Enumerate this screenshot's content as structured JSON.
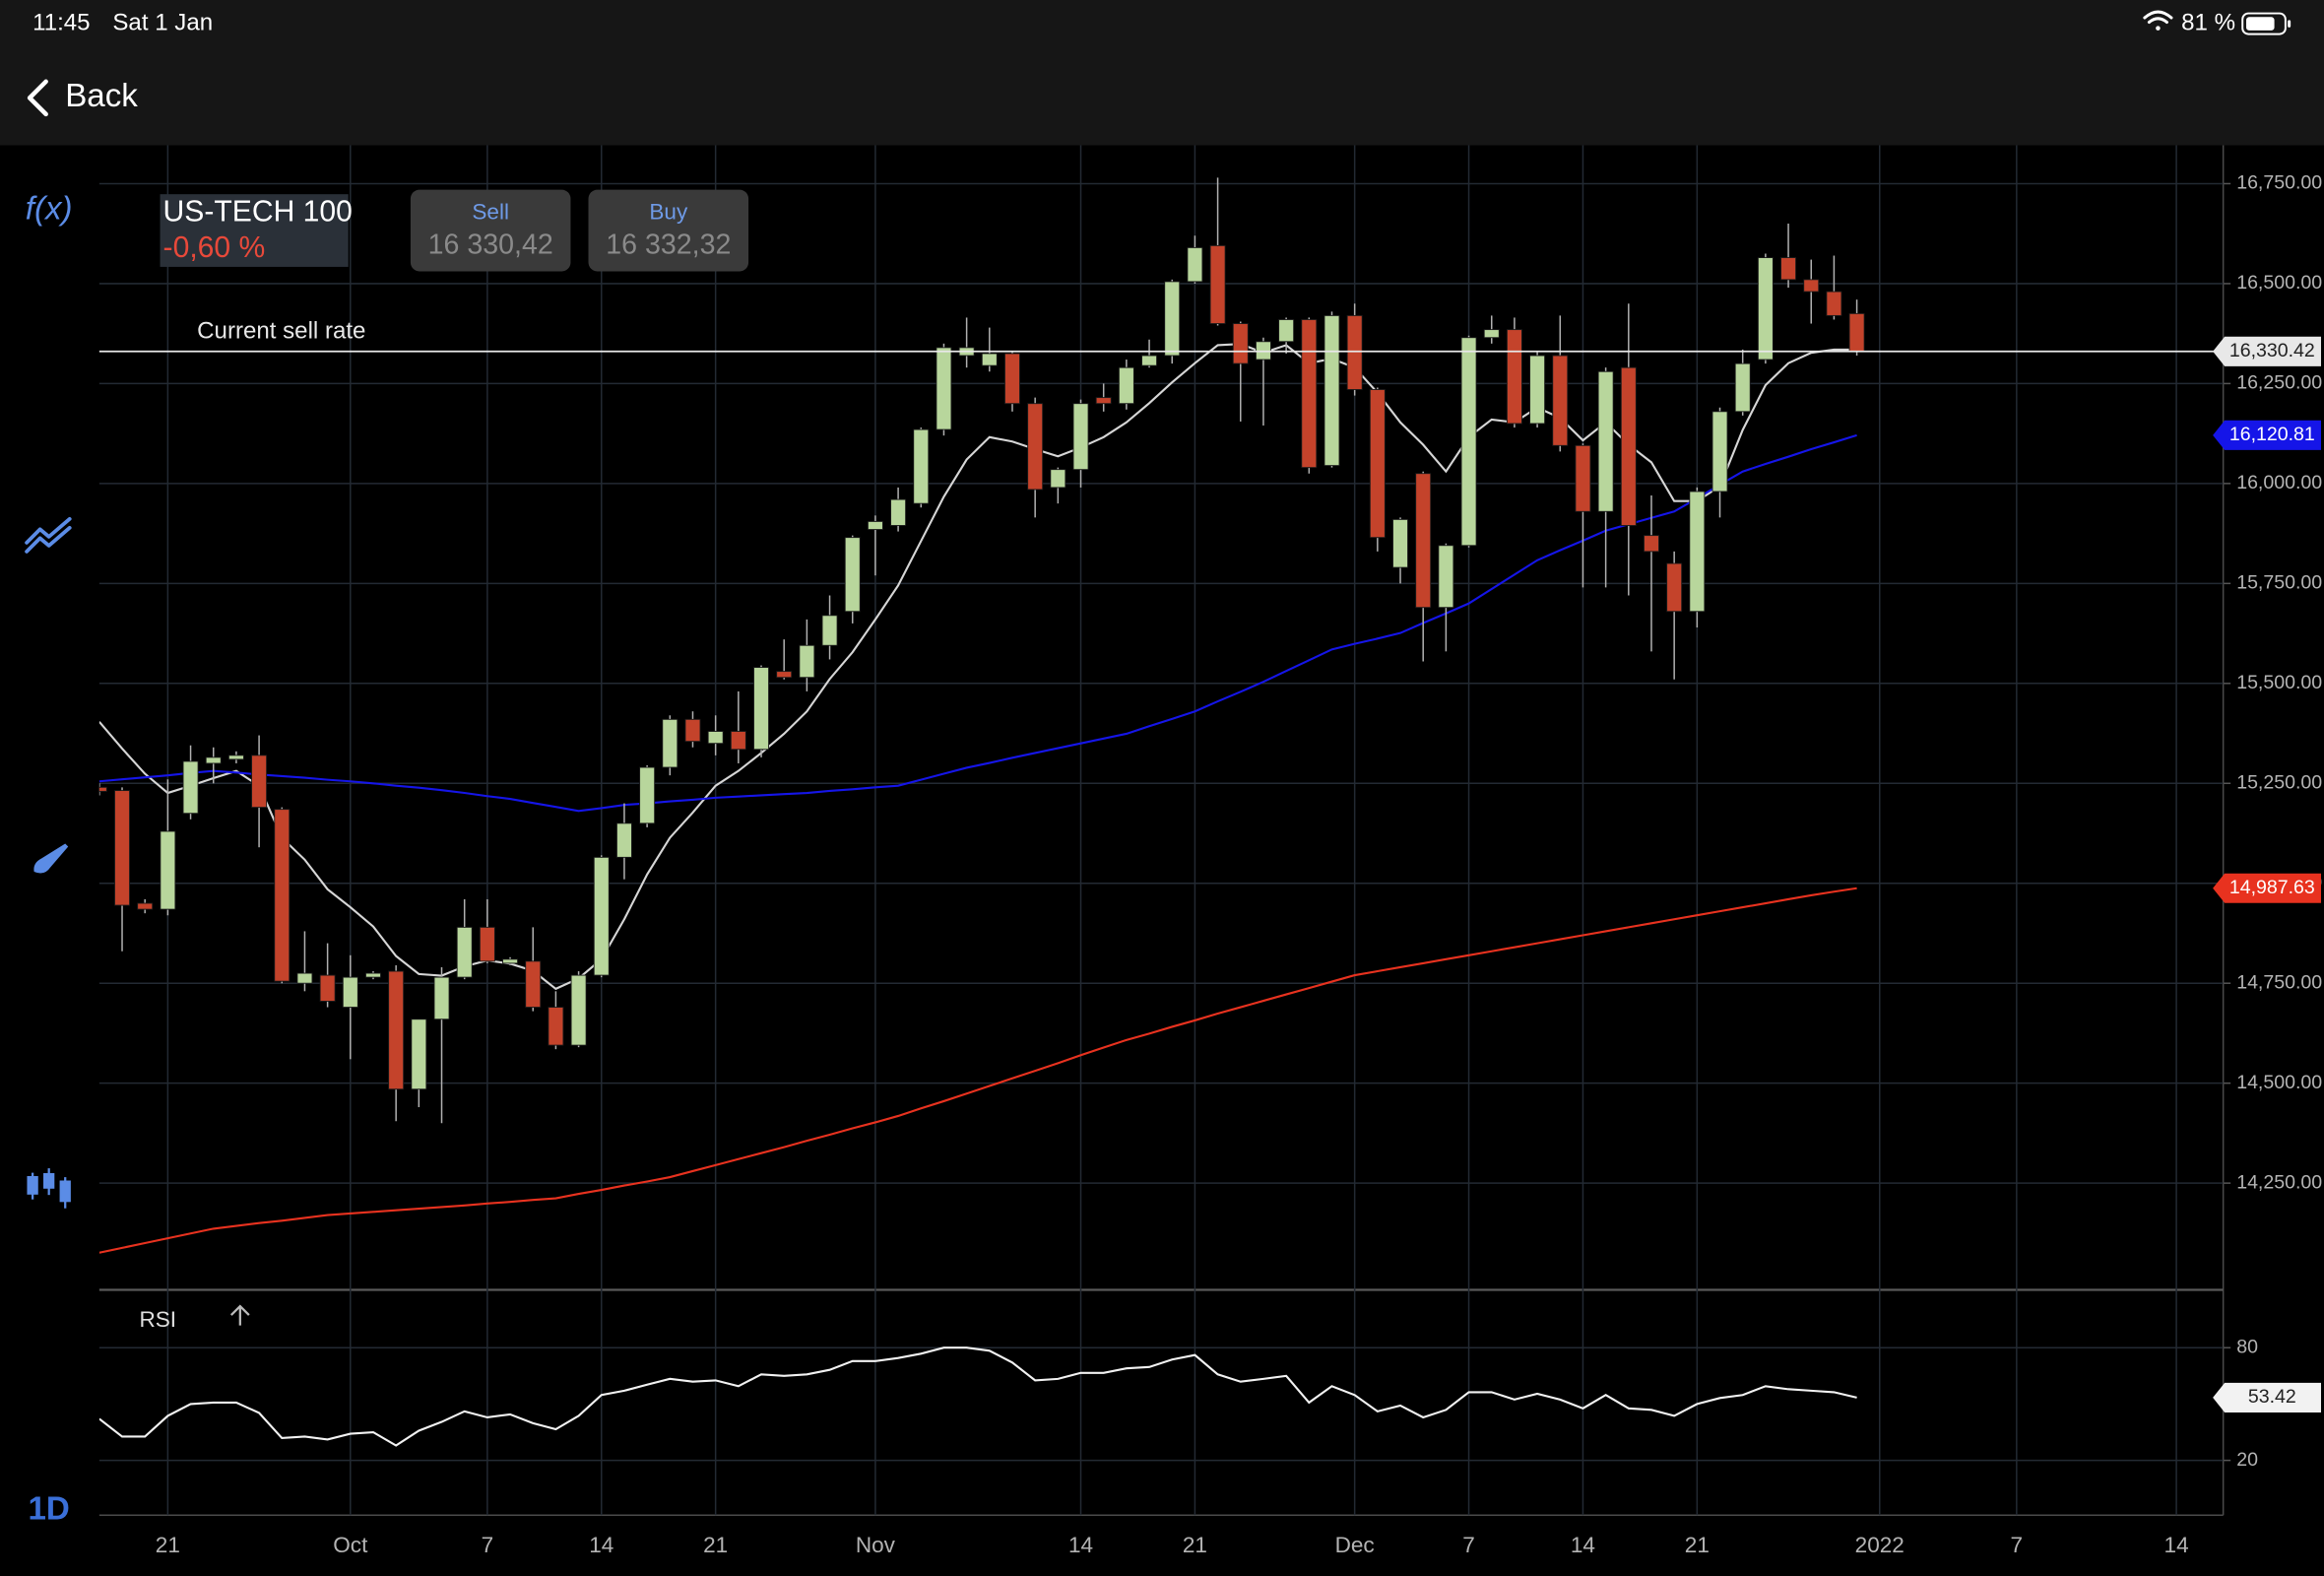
{
  "status_bar": {
    "time": "11:45",
    "date": "Sat 1 Jan",
    "battery": "81 %"
  },
  "nav": {
    "back": "Back"
  },
  "toolbar": {
    "function": "f(x)",
    "timeframe": "1D"
  },
  "instrument": {
    "name": "US-TECH 100",
    "change": "-0,60 %",
    "sell_label": "Sell",
    "sell_price": "16 330,42",
    "buy_label": "Buy",
    "buy_price": "16 332,32"
  },
  "chart_data": [
    {
      "type": "candlestick",
      "categories": [
        null,
        null,
        null,
        "21",
        null,
        null,
        null,
        null,
        null,
        null,
        null,
        "Oct",
        null,
        null,
        null,
        null,
        null,
        "7",
        null,
        null,
        null,
        null,
        "14",
        null,
        null,
        null,
        null,
        "21",
        null,
        null,
        null,
        null,
        null,
        null,
        "Nov",
        null,
        null,
        null,
        null,
        null,
        null,
        null,
        null,
        "14",
        null,
        null,
        null,
        null,
        "21",
        null,
        null,
        null,
        null,
        null,
        null,
        "Dec",
        null,
        null,
        null,
        null,
        "7",
        null,
        null,
        null,
        null,
        "14",
        null,
        null,
        null,
        null,
        "21",
        null,
        null,
        null,
        null,
        null,
        null,
        null,
        "2022",
        null,
        null,
        null,
        null,
        null,
        "7",
        null,
        null,
        null,
        null,
        null,
        null,
        "14"
      ],
      "open": [
        15240,
        15232,
        14950,
        14935,
        15175,
        15300,
        15310,
        15320,
        15185,
        14750,
        14770,
        14690,
        14765,
        14780,
        14485,
        14660,
        14765,
        14890,
        14800,
        14805,
        14690,
        14595,
        14770,
        15065,
        15150,
        15290,
        15410,
        15350,
        15380,
        15335,
        15530,
        15515,
        15595,
        15680,
        15885,
        15895,
        15950,
        16135,
        16320,
        16295,
        16325,
        16200,
        15990,
        16035,
        16215,
        16200,
        16295,
        16320,
        16505,
        16595,
        16400,
        16310,
        16355,
        16410,
        16045,
        16420,
        16235,
        15790,
        16025,
        15690,
        15845,
        16365,
        16385,
        16150,
        16320,
        16095,
        15930,
        16290,
        15870,
        15800,
        15680,
        15980,
        16180,
        16310,
        16565,
        16510,
        16480,
        16425,
        null,
        null,
        null,
        null,
        null,
        null,
        null,
        null,
        null,
        null,
        null,
        null,
        null,
        null
      ],
      "high": [
        15250,
        15240,
        14960,
        15260,
        15345,
        15340,
        15330,
        15370,
        15190,
        14880,
        14850,
        14820,
        14780,
        14795,
        14660,
        14790,
        14960,
        14960,
        14815,
        14890,
        14730,
        14780,
        15070,
        15200,
        15295,
        15420,
        15430,
        15420,
        15480,
        15545,
        15610,
        15660,
        15720,
        15870,
        15920,
        15990,
        16140,
        16350,
        16415,
        16390,
        16330,
        16215,
        16040,
        16210,
        16250,
        16310,
        16360,
        16510,
        16620,
        16765,
        16405,
        16365,
        16415,
        16415,
        16430,
        16450,
        16240,
        15915,
        16030,
        15850,
        16370,
        16420,
        16415,
        16330,
        16420,
        16100,
        16290,
        16450,
        15970,
        15830,
        15990,
        16190,
        16335,
        16575,
        16650,
        16560,
        16570,
        16460,
        null,
        null,
        null,
        null,
        null,
        null,
        null,
        null,
        null,
        null,
        null,
        null,
        null,
        null
      ],
      "low": [
        15220,
        14830,
        14925,
        14920,
        15160,
        15250,
        15300,
        15090,
        14750,
        14730,
        14690,
        14560,
        14760,
        14405,
        14440,
        14400,
        14760,
        14800,
        14795,
        14680,
        14585,
        14590,
        14765,
        15010,
        15140,
        15270,
        15340,
        15320,
        15300,
        15315,
        15510,
        15480,
        15560,
        15650,
        15770,
        15880,
        15940,
        16120,
        16290,
        16280,
        16180,
        15915,
        15950,
        15990,
        16180,
        16185,
        16290,
        16300,
        16500,
        16395,
        16155,
        16145,
        16325,
        16025,
        16040,
        16220,
        15830,
        15750,
        15555,
        15580,
        15840,
        16350,
        16140,
        16140,
        16080,
        15740,
        15740,
        15720,
        15580,
        15510,
        15640,
        15915,
        16170,
        16300,
        16490,
        16400,
        16410,
        16320,
        null,
        null,
        null,
        null,
        null,
        null,
        null,
        null,
        null,
        null,
        null,
        null,
        null,
        null
      ],
      "close": [
        15230,
        14945,
        14935,
        15130,
        15305,
        15315,
        15320,
        15190,
        14755,
        14775,
        14705,
        14765,
        14775,
        14485,
        14660,
        14765,
        14890,
        14805,
        14810,
        14690,
        14595,
        14770,
        15065,
        15150,
        15290,
        15410,
        15355,
        15380,
        15335,
        15540,
        15515,
        15595,
        15670,
        15865,
        15905,
        15960,
        16135,
        16340,
        16340,
        16325,
        16200,
        15985,
        16035,
        16200,
        16200,
        16290,
        16320,
        16505,
        16590,
        16400,
        16300,
        16355,
        16410,
        16040,
        16420,
        16235,
        15865,
        15910,
        15690,
        15845,
        16365,
        16385,
        16150,
        16320,
        16095,
        15930,
        16280,
        15895,
        15830,
        15680,
        15980,
        16180,
        16300,
        16565,
        16510,
        16480,
        16420,
        16330.42,
        null,
        null,
        null,
        null,
        null,
        null,
        null,
        null,
        null,
        null,
        null,
        null,
        null,
        null
      ],
      "up_color": "#b8d69c",
      "down_color": "#c4432b",
      "series": [
        {
          "color": "#d6d6d6",
          "values": [
            15404,
            15337,
            15274,
            15226,
            15244,
            15263,
            15281,
            15244,
            15114,
            15059,
            14985,
            14940,
            14892,
            14818,
            14773,
            14769,
            14792,
            14807,
            14799,
            14781,
            14736,
            14762,
            14810,
            14910,
            15022,
            15114,
            15177,
            15244,
            15281,
            15326,
            15374,
            15430,
            15511,
            15578,
            15660,
            15745,
            15856,
            15967,
            16060,
            16116,
            16105,
            16086,
            16068,
            16090,
            16116,
            16153,
            16201,
            16253,
            16301,
            16346,
            16349,
            16327,
            16346,
            16301,
            16312,
            16290,
            16227,
            16153,
            16097,
            16030,
            16116,
            16160,
            16153,
            16190,
            16164,
            16108,
            16153,
            16097,
            16053,
            15956,
            15956,
            15993,
            16134,
            16246,
            16301,
            16327,
            16335,
            16335,
            null,
            null,
            null,
            null,
            null,
            null,
            null,
            null,
            null,
            null,
            null,
            null,
            null,
            null
          ]
        },
        {
          "color": "#1515e8",
          "values": [
            15255,
            15260,
            15265,
            15270,
            15276,
            15281,
            15277,
            15272,
            15268,
            15264,
            15259,
            15255,
            15250,
            15244,
            15239,
            15233,
            15226,
            15218,
            15211,
            15201,
            15191,
            15181,
            15188,
            15196,
            15200,
            15205,
            15209,
            15214,
            15217,
            15220,
            15223,
            15226,
            15231,
            15235,
            15240,
            15244,
            15259,
            15274,
            15289,
            15301,
            15314,
            15326,
            15338,
            15350,
            15362,
            15374,
            15393,
            15411,
            15430,
            15455,
            15479,
            15504,
            15531,
            15558,
            15585,
            15599,
            15612,
            15626,
            15651,
            15675,
            15700,
            15736,
            15772,
            15808,
            15833,
            15857,
            15882,
            15898,
            15914,
            15930,
            15963,
            15997,
            16030,
            16049,
            16067,
            16086,
            16103,
            16120.81,
            null,
            null,
            null,
            null,
            null,
            null,
            null,
            null,
            null,
            null,
            null,
            null,
            null,
            null
          ],
          "value_labels": [
            null,
            null,
            null,
            null,
            null,
            null,
            null,
            null,
            null,
            null,
            null,
            null,
            null,
            null,
            null,
            null,
            null,
            null,
            null,
            null,
            null,
            null,
            null,
            null,
            null,
            null,
            null,
            null,
            null,
            null,
            null,
            null,
            null,
            null,
            null,
            null,
            null,
            null,
            null,
            null,
            null,
            null,
            null,
            null,
            null,
            null,
            null,
            null,
            null,
            null,
            null,
            null,
            null,
            null,
            null,
            null,
            null,
            null,
            null,
            null,
            null,
            null,
            null,
            null,
            null,
            null,
            null,
            null,
            null,
            null,
            null,
            null,
            null,
            null,
            null,
            null,
            null,
            "16,120.81",
            null,
            null,
            null,
            null,
            null,
            null,
            null,
            null,
            null,
            null,
            null,
            null,
            null,
            null
          ]
        },
        {
          "color": "#e8321f",
          "values": [
            14076,
            14088,
            14100,
            14112,
            14124,
            14136,
            14143,
            14150,
            14156,
            14163,
            14170,
            14174,
            14178,
            14182,
            14186,
            14190,
            14194,
            14199,
            14203,
            14208,
            14212,
            14223,
            14233,
            14244,
            14254,
            14265,
            14280,
            14295,
            14310,
            14325,
            14340,
            14356,
            14371,
            14387,
            14402,
            14418,
            14437,
            14455,
            14474,
            14493,
            14512,
            14531,
            14550,
            14570,
            14589,
            14608,
            14624,
            14641,
            14657,
            14674,
            14690,
            14706,
            14722,
            14738,
            14754,
            14770,
            14780,
            14790,
            14800,
            14810,
            14820,
            14830,
            14840,
            14850,
            14860,
            14870,
            14880,
            14890,
            14900,
            14910,
            14920,
            14930,
            14940,
            14950,
            14960,
            14970,
            14979,
            14987.63,
            null,
            null,
            null,
            null,
            null,
            null,
            null,
            null,
            null,
            null,
            null,
            null,
            null,
            null
          ],
          "value_labels": [
            null,
            null,
            null,
            null,
            null,
            null,
            null,
            null,
            null,
            null,
            null,
            null,
            null,
            null,
            null,
            null,
            null,
            null,
            null,
            null,
            null,
            null,
            null,
            null,
            null,
            null,
            null,
            null,
            null,
            null,
            null,
            null,
            null,
            null,
            null,
            null,
            null,
            null,
            null,
            null,
            null,
            null,
            null,
            null,
            null,
            null,
            null,
            null,
            null,
            null,
            null,
            null,
            null,
            null,
            null,
            null,
            null,
            null,
            null,
            null,
            null,
            null,
            null,
            null,
            null,
            null,
            null,
            null,
            null,
            null,
            null,
            null,
            null,
            null,
            null,
            null,
            null,
            "14,987.63",
            null,
            null,
            null,
            null,
            null,
            null,
            null,
            null,
            null,
            null,
            null,
            null,
            null,
            null
          ]
        }
      ],
      "current_rate": {
        "text": "Current sell rate",
        "value": 16330.42,
        "label": "16,330.42",
        "color": "#e8e8e8"
      },
      "ylim": [
        13983,
        16846
      ],
      "yticks": [
        {
          "value": 14250,
          "label": "14,250.00"
        },
        {
          "value": 14500,
          "label": "14,500.00"
        },
        {
          "value": 14750,
          "label": "14,750.00"
        },
        {
          "value": 15000,
          "label": "15,000.00"
        },
        {
          "value": 15250,
          "label": "15,250.00"
        },
        {
          "value": 15500,
          "label": "15,500.00"
        },
        {
          "value": 15750,
          "label": "15,750.00"
        },
        {
          "value": 16000,
          "label": "16,000.00"
        },
        {
          "value": 16250,
          "label": "16,250.00"
        },
        {
          "value": 16500,
          "label": "16,500.00"
        },
        {
          "value": 16750,
          "label": "16,750.00"
        }
      ],
      "grid": true
    },
    {
      "type": "line",
      "title": "RSI",
      "series": [
        {
          "color": "#f2f2f2",
          "values": [
            42.1,
            32.7,
            32.7,
            43.7,
            50.0,
            50.8,
            50.8,
            45.3,
            31.9,
            32.7,
            31.1,
            34.2,
            35.0,
            27.9,
            35.8,
            40.5,
            46.1,
            42.9,
            44.5,
            39.8,
            36.6,
            43.7,
            54.8,
            57.1,
            60.3,
            63.4,
            61.9,
            62.6,
            59.5,
            65.8,
            65.0,
            65.8,
            68.2,
            72.9,
            72.9,
            74.5,
            76.8,
            80.0,
            80.0,
            78.4,
            72.1,
            62.6,
            63.4,
            66.6,
            66.6,
            69.0,
            69.7,
            73.7,
            76.1,
            65.8,
            61.9,
            63.4,
            65.0,
            50.8,
            59.5,
            54.8,
            46.1,
            49.2,
            42.9,
            46.9,
            56.3,
            56.3,
            52.4,
            55.5,
            52.4,
            47.7,
            54.8,
            47.7,
            46.9,
            43.7,
            50.0,
            53.2,
            54.8,
            59.5,
            57.9,
            57.1,
            56.3,
            53.42,
            null,
            null,
            null,
            null,
            null,
            null,
            null,
            null,
            null,
            null,
            null,
            null,
            null,
            null
          ]
        }
      ],
      "ylim": [
        -9.2,
        110.8
      ],
      "yticks": [
        20,
        80
      ],
      "grid": true
    }
  ]
}
